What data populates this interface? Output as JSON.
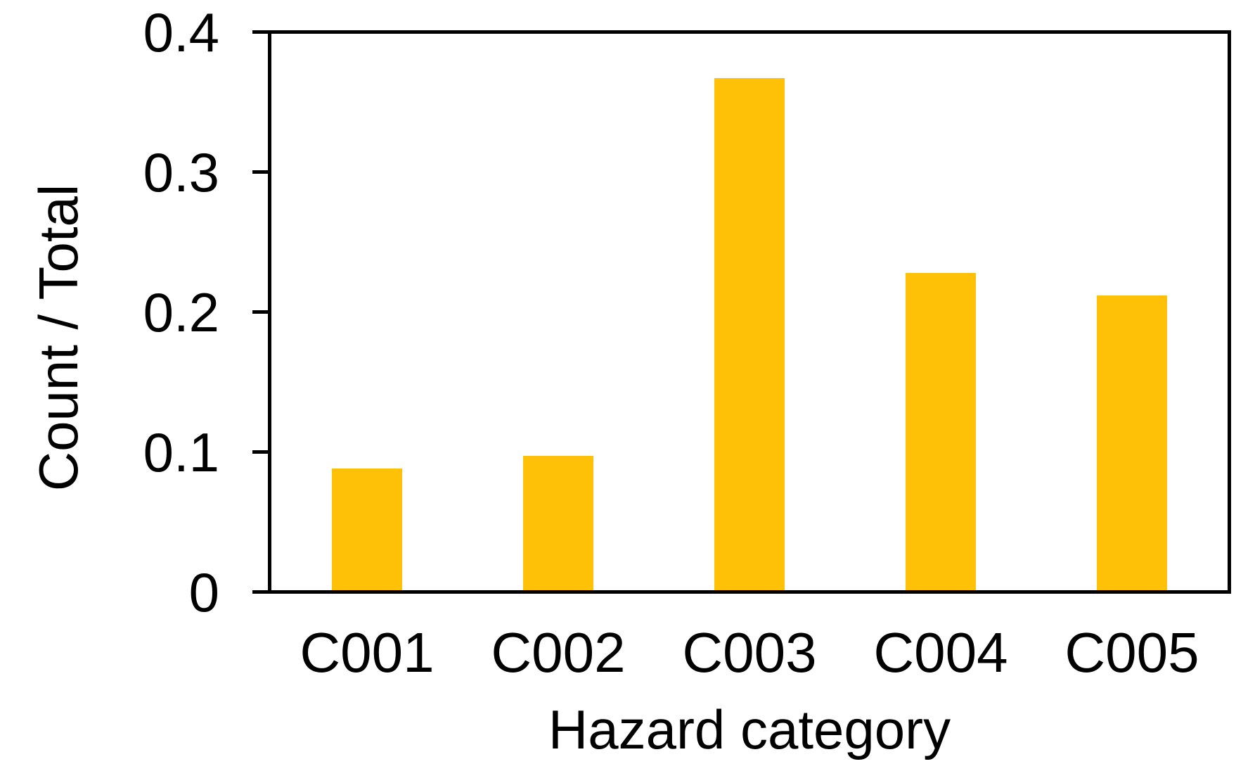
{
  "chart_data": {
    "type": "bar",
    "title": "",
    "xlabel": "Hazard category",
    "ylabel": "Count / Total",
    "categories": [
      "C001",
      "C002",
      "C003",
      "C004",
      "C005"
    ],
    "values": [
      0.088,
      0.097,
      0.367,
      0.228,
      0.212
    ],
    "ylim": [
      0,
      0.4
    ],
    "yticks": [
      0,
      0.1,
      0.2,
      0.3,
      0.4
    ],
    "ytick_labels": [
      "0",
      "0.1",
      "0.2",
      "0.3",
      "0.4"
    ],
    "bar_color": "#FFC107",
    "axis_color": "#000000",
    "text_color": "#000000",
    "background_color": "#FFFFFF",
    "grid": false,
    "frame": "full-box",
    "tick_direction": "out"
  }
}
